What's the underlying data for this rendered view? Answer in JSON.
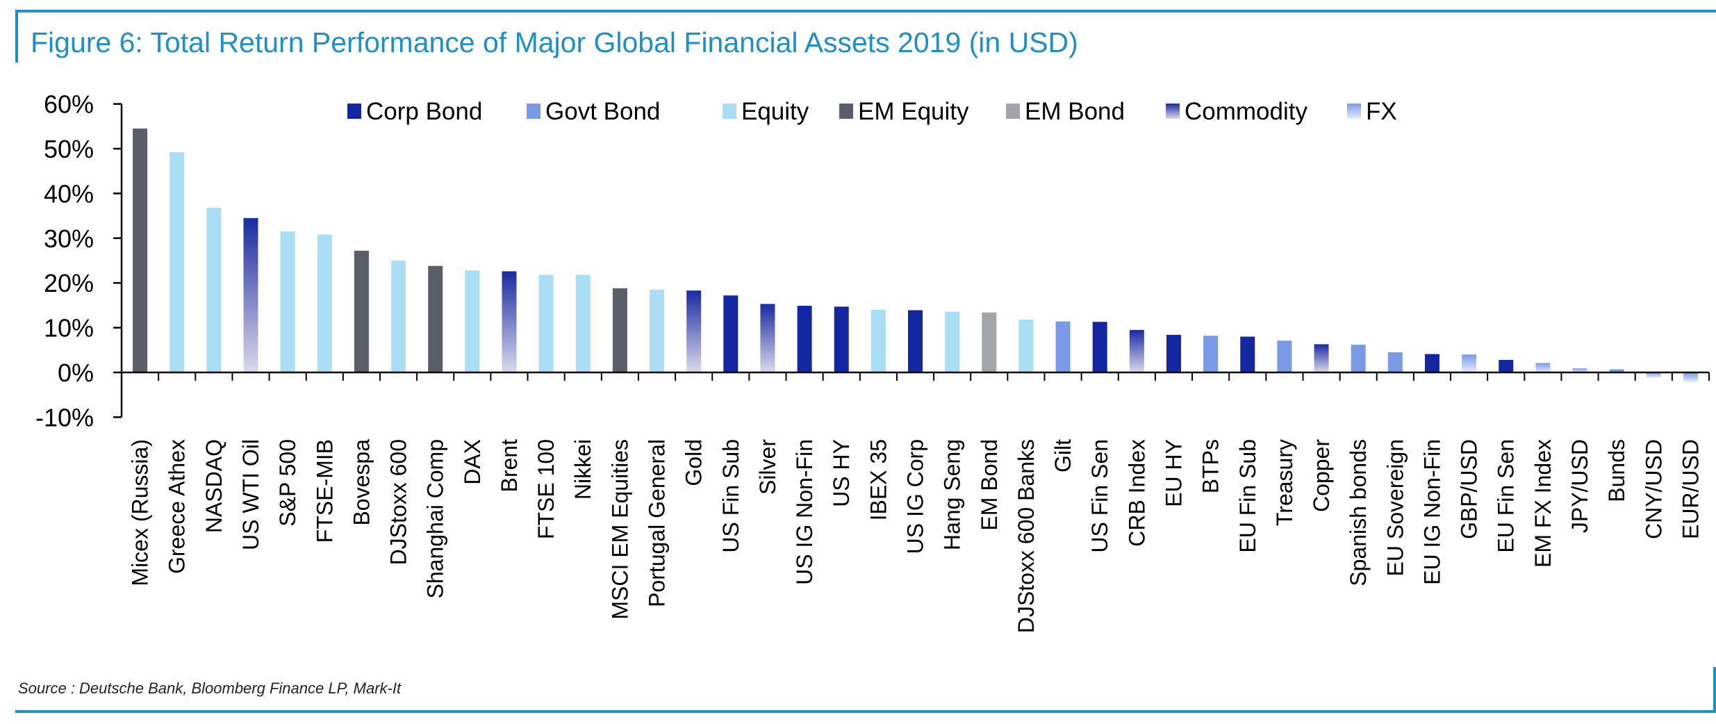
{
  "title": "Figure 6: Total Return Performance of Major Global Financial Assets 2019 (in USD)",
  "source": "Source : Deutsche Bank, Bloomberg Finance LP, Mark-It",
  "colors": {
    "title": "#1f8fc4",
    "Corp Bond": "#1327a0",
    "Govt Bond": "#7a9ae6",
    "Equity": "#a9def5",
    "EM Equity": "#5a5e69",
    "EM Bond": "#a3a5ab",
    "Commodity_top": "#1a2aa0",
    "Commodity_bottom": "#dcd9ec",
    "FX_top": "#7a9ae6",
    "FX_bottom": "#e6eefb"
  },
  "chart_data": {
    "type": "bar",
    "title": "Figure 6: Total Return Performance of Major Global Financial Assets 2019 (in USD)",
    "xlabel": "",
    "ylabel": "",
    "ylim": [
      -10,
      60
    ],
    "yticks": [
      -10,
      0,
      10,
      20,
      30,
      40,
      50,
      60
    ],
    "ytick_labels": [
      "-10%",
      "0%",
      "10%",
      "20%",
      "30%",
      "40%",
      "50%",
      "60%"
    ],
    "grid": false,
    "legend_position": "top",
    "legend": [
      "Corp Bond",
      "Govt Bond",
      "Equity",
      "EM Equity",
      "EM Bond",
      "Commodity",
      "FX"
    ],
    "categories": [
      "Micex (Russia)",
      "Greece Athex",
      "NASDAQ",
      "US WTI Oil",
      "S&P 500",
      "FTSE-MIB",
      "Bovespa",
      "DJStoxx 600",
      "Shanghai Comp",
      "DAX",
      "Brent",
      "FTSE 100",
      "Nikkei",
      "MSCI EM Equities",
      "Portugal General",
      "Gold",
      "US Fin Sub",
      "Silver",
      "US IG Non-Fin",
      "US HY",
      "IBEX 35",
      "US IG Corp",
      "Hang Seng",
      "EM Bond",
      "DJStoxx 600 Banks",
      "Gilt",
      "US Fin Sen",
      "CRB Index",
      "EU HY",
      "BTPs",
      "EU Fin Sub",
      "Treasury",
      "Copper",
      "Spanish bonds",
      "EU Sovereign",
      "EU IG Non-Fin",
      "GBP/USD",
      "EU Fin Sen",
      "EM FX Index",
      "JPY/USD",
      "Bunds",
      "CNY/USD",
      "EUR/USD"
    ],
    "values": [
      54.5,
      49.2,
      36.8,
      34.5,
      31.5,
      30.8,
      27.2,
      25.0,
      23.8,
      22.8,
      22.6,
      21.8,
      21.8,
      18.8,
      18.5,
      18.3,
      17.2,
      15.3,
      14.9,
      14.7,
      14.0,
      13.9,
      13.6,
      13.4,
      11.8,
      11.4,
      11.3,
      9.5,
      8.4,
      8.2,
      8.0,
      7.1,
      6.3,
      6.2,
      4.5,
      4.1,
      4.0,
      2.8,
      2.1,
      0.9,
      0.7,
      -1.2,
      -2.2
    ],
    "asset_class": [
      "EM Equity",
      "Equity",
      "Equity",
      "Commodity",
      "Equity",
      "Equity",
      "EM Equity",
      "Equity",
      "EM Equity",
      "Equity",
      "Commodity",
      "Equity",
      "Equity",
      "EM Equity",
      "Equity",
      "Commodity",
      "Corp Bond",
      "Commodity",
      "Corp Bond",
      "Corp Bond",
      "Equity",
      "Corp Bond",
      "Equity",
      "EM Bond",
      "Equity",
      "Govt Bond",
      "Corp Bond",
      "Commodity",
      "Corp Bond",
      "Govt Bond",
      "Corp Bond",
      "Govt Bond",
      "Commodity",
      "Govt Bond",
      "Govt Bond",
      "Corp Bond",
      "FX",
      "Corp Bond",
      "FX",
      "FX",
      "Govt Bond",
      "FX",
      "FX"
    ]
  }
}
